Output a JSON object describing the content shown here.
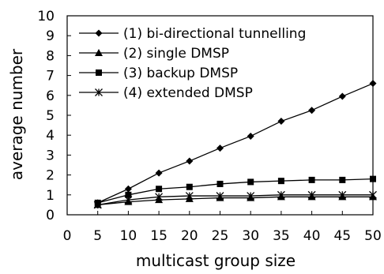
{
  "chart_data": {
    "type": "line",
    "title": "",
    "xlabel": "multicast group size",
    "ylabel": "average number",
    "xlim": [
      0,
      50
    ],
    "ylim": [
      0,
      10
    ],
    "xticks": [
      0,
      5,
      10,
      15,
      20,
      25,
      30,
      35,
      40,
      45,
      50
    ],
    "yticks": [
      0,
      1,
      2,
      3,
      4,
      5,
      6,
      7,
      8,
      9,
      10
    ],
    "grid": false,
    "legend_position": "top-left",
    "x": [
      5,
      10,
      15,
      20,
      25,
      30,
      35,
      40,
      45,
      50
    ],
    "series": [
      {
        "name": "(1) bi-directional tunnelling",
        "marker": "diamond",
        "values": [
          0.6,
          1.3,
          2.1,
          2.7,
          3.35,
          3.95,
          4.7,
          5.25,
          5.95,
          6.6
        ]
      },
      {
        "name": "(2) single DMSP",
        "marker": "triangle",
        "values": [
          0.5,
          0.65,
          0.75,
          0.8,
          0.85,
          0.85,
          0.9,
          0.9,
          0.9,
          0.9
        ]
      },
      {
        "name": "(3) backup DMSP",
        "marker": "square",
        "values": [
          0.6,
          1.0,
          1.3,
          1.4,
          1.55,
          1.65,
          1.7,
          1.75,
          1.75,
          1.8
        ]
      },
      {
        "name": "(4) extended DMSP",
        "marker": "star",
        "values": [
          0.5,
          0.75,
          0.9,
          0.95,
          0.95,
          0.95,
          1.0,
          1.0,
          1.0,
          1.0
        ]
      }
    ]
  }
}
